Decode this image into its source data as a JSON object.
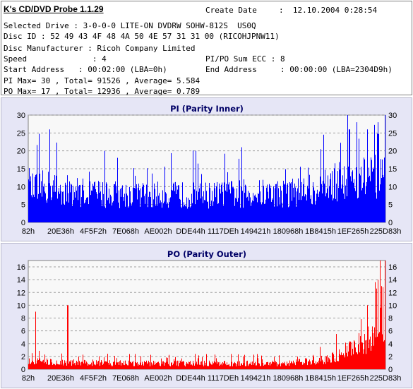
{
  "app": {
    "title": "K's CD/DVD Probe 1.1.29",
    "create_date_label": "Create Date",
    "create_date_value": ":  12.10.2004 0:28:54"
  },
  "info": {
    "selected_drive": "Selected Drive : 3-0-0-0 LITE-ON DVDRW SOHW-812S  US0Q",
    "disc_id": "Disc ID : 52 49 43 4F 48 4A 50 4E 57 31 31 00 (RICOHJPNW11)",
    "manufacturer": "Disc Manufacturer : Ricoh Company Limited",
    "speed": "Speed              : 4",
    "pipo_sum": "PI/PO Sum ECC : 8",
    "start_address": "Start Address   : 00:02:00 (LBA=0h)",
    "end_address": "End Address     : 00:00:00 (LBA=2304D9h)",
    "pi_stats": "PI Max= 30 , Total= 91526 , Average= 5.584",
    "po_stats": "PO Max= 17 , Total= 12936 , Average= 0.789"
  },
  "colors": {
    "pi": "#0000ff",
    "po": "#ff0000",
    "panel_bg": "#e6e6f6",
    "plot_bg": "#f8f8f8"
  },
  "chart_data": [
    {
      "type": "bar",
      "title": "PI (Parity Inner)",
      "ylim": [
        0,
        30
      ],
      "y_ticks": [
        0,
        5,
        10,
        15,
        20,
        25,
        30
      ],
      "x_tick_labels": [
        "82h",
        "20E36h",
        "4F5F2h",
        "7E068h",
        "AE002h",
        "DDE44h",
        "1117DEh",
        "149421h",
        "180968h",
        "1B8415h",
        "1EF265h",
        "225D83h"
      ],
      "grid": true,
      "series": [
        {
          "color": "#0000ff",
          "profile": [
            [
              0,
              10
            ],
            [
              0.05,
              11
            ],
            [
              0.1,
              10
            ],
            [
              0.2,
              9
            ],
            [
              0.3,
              8.5
            ],
            [
              0.4,
              8.5
            ],
            [
              0.5,
              8.5
            ],
            [
              0.6,
              9
            ],
            [
              0.7,
              9
            ],
            [
              0.75,
              9.5
            ],
            [
              0.8,
              10
            ],
            [
              0.85,
              12
            ],
            [
              0.9,
              14
            ],
            [
              0.95,
              14
            ],
            [
              1,
              14
            ]
          ],
          "peaks": [
            [
              0.06,
              26
            ],
            [
              0.9,
              26
            ],
            [
              0.92,
              28
            ],
            [
              0.95,
              26
            ],
            [
              0.98,
              28
            ],
            [
              1,
              30
            ]
          ]
        }
      ]
    },
    {
      "type": "bar",
      "title": "PO (Parity Outer)",
      "ylim": [
        0,
        17
      ],
      "y_ticks": [
        0,
        2,
        4,
        6,
        8,
        10,
        12,
        14,
        16
      ],
      "x_tick_labels": [
        "82h",
        "20E36h",
        "4F5F2h",
        "7E068h",
        "AE002h",
        "DDE44h",
        "1117DEh",
        "149421h",
        "180968h",
        "1B8415h",
        "1EF265h",
        "225D83h"
      ],
      "grid": true,
      "series": [
        {
          "color": "#ff0000",
          "profile": [
            [
              0,
              1.5
            ],
            [
              0.1,
              1.2
            ],
            [
              0.3,
              1
            ],
            [
              0.5,
              1
            ],
            [
              0.7,
              1
            ],
            [
              0.8,
              1.5
            ],
            [
              0.85,
              2
            ],
            [
              0.9,
              3.5
            ],
            [
              0.95,
              5
            ],
            [
              1,
              8
            ]
          ],
          "peaks": [
            [
              0.02,
              9
            ],
            [
              0.11,
              10
            ],
            [
              0.95,
              10
            ],
            [
              0.98,
              14
            ],
            [
              0.99,
              13
            ],
            [
              1,
              17
            ]
          ]
        }
      ]
    }
  ]
}
